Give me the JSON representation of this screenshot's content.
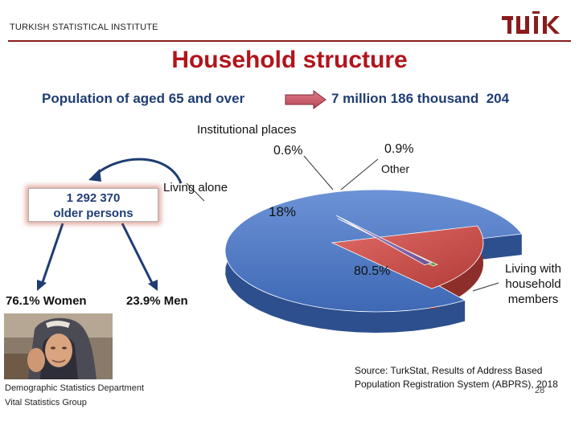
{
  "header": {
    "institute": "TURKISH STATISTICAL INSTITUTE",
    "logo_text": "TÜİK",
    "brand_color": "#8b1c1c"
  },
  "title": "Household structure",
  "population": {
    "label": "Population of aged 65 and over",
    "value": "7 million 186 thousand  204"
  },
  "older_persons": {
    "value": "1 292 370",
    "label": "older persons",
    "women": "76.1% Women",
    "men": "23.9% Men"
  },
  "chart_data": {
    "type": "pie",
    "categories": [
      "Living with household members",
      "Living alone",
      "Institutional places",
      "Other"
    ],
    "values": [
      80.5,
      18,
      0.6,
      0.9
    ],
    "labels": [
      "80.5%",
      "18%",
      "0.6%",
      "0.9%"
    ],
    "category_labels": [
      "Living with household members",
      "Living alone",
      "Institutional places",
      "Other"
    ],
    "colors": [
      "#4472c4",
      "#c0504d",
      "#70ad47",
      "#8064a2"
    ],
    "style": "3d-exploded"
  },
  "source": {
    "line1": "Source: TurkStat, Results of Address Based",
    "line2": "Population Registration System (ABPRS), 2018"
  },
  "footer": {
    "department": "Demographic Statistics Department",
    "group": "Vital Statistics Group",
    "page_number": "28"
  }
}
